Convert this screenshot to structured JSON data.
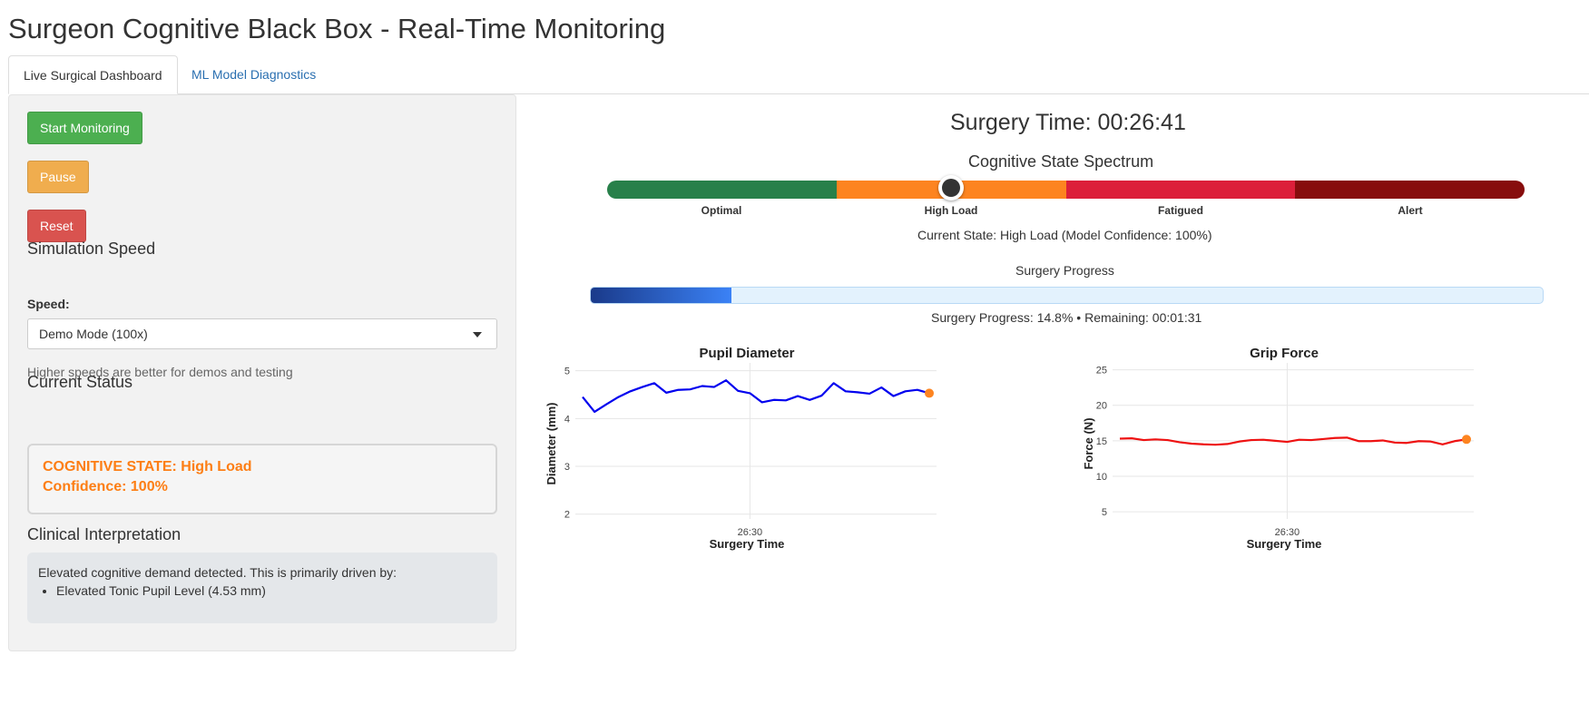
{
  "app": {
    "title": "Surgeon Cognitive Black Box - Real-Time Monitoring"
  },
  "tabs": [
    {
      "label": "Live Surgical Dashboard",
      "active": true
    },
    {
      "label": "ML Model Diagnostics",
      "active": false
    }
  ],
  "sidebar": {
    "buttons": {
      "start": "Start Monitoring",
      "pause": "Pause",
      "reset": "Reset"
    },
    "simulation": {
      "heading": "Simulation Speed",
      "speed_label": "Speed:",
      "speed_value": "Demo Mode (100x)",
      "help": "Higher speeds are better for demos and testing"
    },
    "status": {
      "heading": "Current Status",
      "state_line": "COGNITIVE STATE: High Load",
      "confidence_line": "Confidence: 100%"
    },
    "interpretation": {
      "heading": "Clinical Interpretation",
      "text": "Elevated cognitive demand detected. This is primarily driven by:",
      "items": [
        "Elevated Tonic Pupil Level (4.53 mm)"
      ]
    }
  },
  "main": {
    "surgery_time": "Surgery Time: 00:26:41",
    "spectrum": {
      "title": "Cognitive State Spectrum",
      "segments": [
        {
          "label": "Optimal",
          "color": "#28804a"
        },
        {
          "label": "High Load",
          "color": "#fd8420"
        },
        {
          "label": "Fatigued",
          "color": "#dc1f3a"
        },
        {
          "label": "Alert",
          "color": "#870d0d"
        }
      ],
      "current_index": 1,
      "current_position_in_segment": 0.5,
      "current_state_text": "Current State: High Load (Model Confidence: 100%)"
    },
    "progress": {
      "title": "Surgery Progress",
      "value": 0.148,
      "text": "Surgery Progress: 14.8% • Remaining: 00:01:31"
    }
  },
  "chart_data": [
    {
      "type": "line",
      "title": "Pupil Diameter",
      "xlabel": "Surgery Time",
      "ylabel": "Diameter (mm)",
      "xticks": [
        "26:30"
      ],
      "ylim": [
        1.9,
        5.05
      ],
      "yticks": [
        2,
        3,
        4,
        5
      ],
      "grid": true,
      "line_color": "#0000ee",
      "point_color": "#fd8420",
      "series": [
        {
          "values": [
            4.45,
            4.14,
            4.3,
            4.45,
            4.57,
            4.66,
            4.74,
            4.54,
            4.6,
            4.61,
            4.68,
            4.66,
            4.8,
            4.58,
            4.53,
            4.34,
            4.39,
            4.38,
            4.47,
            4.39,
            4.48,
            4.74,
            4.57,
            4.55,
            4.52,
            4.65,
            4.47,
            4.57,
            4.6,
            4.53
          ]
        }
      ]
    },
    {
      "type": "line",
      "title": "Grip Force",
      "xlabel": "Surgery Time",
      "ylabel": "Force (N)",
      "xticks": [
        "26:30"
      ],
      "ylim": [
        4,
        25.2
      ],
      "yticks": [
        5,
        10,
        15,
        20,
        25
      ],
      "grid": true,
      "line_color": "#ee1111",
      "point_color": "#fd8420",
      "series": [
        {
          "values": [
            15.3,
            15.35,
            15.1,
            15.2,
            15.1,
            14.8,
            14.6,
            14.5,
            14.45,
            14.55,
            14.9,
            15.1,
            15.15,
            15.0,
            14.85,
            15.15,
            15.1,
            15.25,
            15.4,
            15.45,
            14.95,
            14.95,
            15.05,
            14.75,
            14.7,
            14.95,
            14.9,
            14.5,
            14.95,
            15.2
          ]
        }
      ]
    }
  ]
}
